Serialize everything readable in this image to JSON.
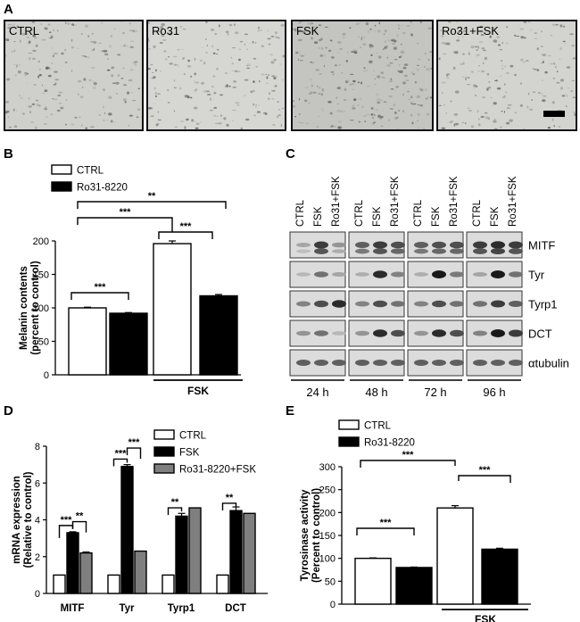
{
  "panels": {
    "A": "A",
    "B": "B",
    "C": "C",
    "D": "D",
    "E": "E"
  },
  "panel_a": {
    "images": [
      {
        "label": "CTRL",
        "tone": "#cfcfcc"
      },
      {
        "label": "Ro31",
        "tone": "#d6d6d3"
      },
      {
        "label": "FSK",
        "tone": "#c4c4c1"
      },
      {
        "label": "Ro31+FSK",
        "tone": "#d3d3d0"
      }
    ]
  },
  "panel_c": {
    "columns": [
      "CTRL",
      "FSK",
      "Ro31+FSK"
    ],
    "timepoints": [
      "24 h",
      "48 h",
      "72 h",
      "96 h"
    ],
    "blots": [
      {
        "label": "MITF",
        "levels": [
          [
            0.2,
            0.8,
            0.3
          ],
          [
            0.6,
            0.8,
            0.7
          ],
          [
            0.6,
            0.7,
            0.7
          ],
          [
            0.8,
            0.9,
            0.8
          ]
        ]
      },
      {
        "label": "Tyr",
        "levels": [
          [
            0.1,
            0.5,
            0.2
          ],
          [
            0.15,
            0.9,
            0.4
          ],
          [
            0.15,
            1.0,
            0.45
          ],
          [
            0.2,
            1.0,
            0.5
          ]
        ]
      },
      {
        "label": "Tyrp1",
        "levels": [
          [
            0.4,
            0.7,
            0.9
          ],
          [
            0.4,
            0.7,
            0.5
          ],
          [
            0.4,
            0.7,
            0.5
          ],
          [
            0.5,
            0.8,
            0.6
          ]
        ]
      },
      {
        "label": "DCT",
        "levels": [
          [
            0.3,
            0.5,
            0.1
          ],
          [
            0.3,
            0.9,
            0.7
          ],
          [
            0.3,
            0.9,
            0.7
          ],
          [
            0.4,
            1.0,
            0.8
          ]
        ]
      },
      {
        "label": "αtubulin",
        "levels": [
          [
            0.6,
            0.6,
            0.6
          ],
          [
            0.6,
            0.6,
            0.6
          ],
          [
            0.6,
            0.6,
            0.6
          ],
          [
            0.6,
            0.6,
            0.6
          ]
        ]
      }
    ]
  },
  "chart_data": [
    {
      "id": "B",
      "type": "bar",
      "ylabel": "Melanin contents\n(percent to control)",
      "ylim": [
        0,
        200
      ],
      "yticks": [
        0,
        50,
        100,
        150,
        200
      ],
      "categories": [
        "",
        ""
      ],
      "series": [
        {
          "name": "CTRL",
          "color": "#ffffff",
          "values": [
            100,
            196
          ],
          "errors": [
            1,
            4
          ]
        },
        {
          "name": "Ro31-8220",
          "color": "#000000",
          "values": [
            92,
            118
          ],
          "errors": [
            1,
            2
          ]
        }
      ],
      "group_label": "FSK",
      "significance": [
        "***",
        "***",
        "***",
        "**"
      ],
      "legend": "top-left"
    },
    {
      "id": "D",
      "type": "bar",
      "ylabel": "mRNA expression\n(Relative to control)",
      "ylim": [
        0,
        8
      ],
      "yticks": [
        0,
        2,
        4,
        6,
        8
      ],
      "categories": [
        "MITF",
        "Tyr",
        "Tyrp1",
        "DCT"
      ],
      "series": [
        {
          "name": "CTRL",
          "color": "#ffffff",
          "values": [
            1,
            1,
            1,
            1
          ],
          "errors": [
            0,
            0,
            0,
            0
          ]
        },
        {
          "name": "FSK",
          "color": "#000000",
          "values": [
            3.3,
            6.9,
            4.2,
            4.5
          ],
          "errors": [
            0.05,
            0.1,
            0.15,
            0.2
          ]
        },
        {
          "name": "Ro31-8220+FSK",
          "color": "#7f7f7f",
          "values": [
            2.2,
            2.3,
            4.65,
            4.35
          ],
          "errors": [
            0.05,
            0,
            0,
            0
          ]
        }
      ],
      "significance": [
        "***",
        "**",
        "***",
        "***",
        "**",
        "**"
      ],
      "legend": "top-right"
    },
    {
      "id": "E",
      "type": "bar",
      "ylabel": "Tyrosinase activity\n(Percent to control)",
      "ylim": [
        0,
        300
      ],
      "yticks": [
        0,
        50,
        100,
        150,
        200,
        250,
        300
      ],
      "categories": [
        "",
        ""
      ],
      "series": [
        {
          "name": "CTRL",
          "color": "#ffffff",
          "values": [
            100,
            210
          ],
          "errors": [
            1,
            5
          ]
        },
        {
          "name": "Ro31-8220",
          "color": "#000000",
          "values": [
            80,
            120
          ],
          "errors": [
            1,
            2
          ]
        }
      ],
      "group_label": "FSK",
      "significance": [
        "***",
        "***",
        "***"
      ],
      "legend": "top-left"
    }
  ]
}
